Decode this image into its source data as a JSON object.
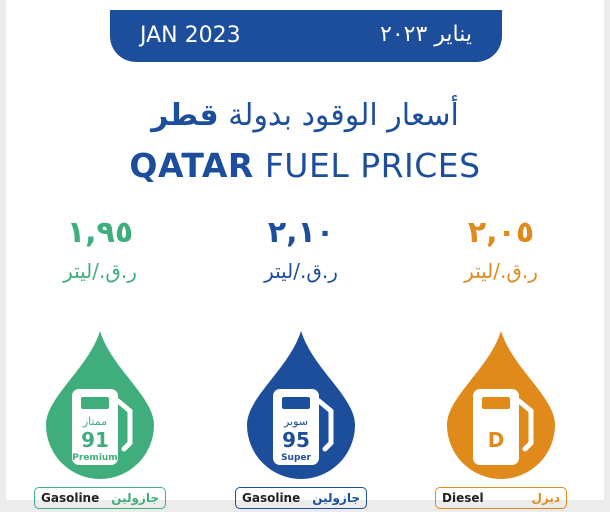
{
  "header": {
    "date_en": "JAN 2023",
    "date_ar": "يناير ٢٠٢٣"
  },
  "title": {
    "ar_regular": "أسعار الوقود بدولة",
    "ar_bold": "قطر",
    "en_bold": "QATAR",
    "en_regular": "FUEL PRICES"
  },
  "fuels": [
    {
      "price": "١,٩٥",
      "unit": "ر.ق./ليتر",
      "pump_ar": "ممتاز",
      "pump_number": "91",
      "pump_en": "Premium",
      "label_en": "Gasoline",
      "label_ar": "جازولين",
      "color": "#3fae7c"
    },
    {
      "price": "٢,١٠",
      "unit": "ر.ق./ليتر",
      "pump_ar": "سوبر",
      "pump_number": "95",
      "pump_en": "Super",
      "label_en": "Gasoline",
      "label_ar": "جازولين",
      "color": "#1d4e9b"
    },
    {
      "price": "٢,٠٥",
      "unit": "ر.ق./ليتر",
      "pump_letter": "D",
      "label_en": "Diesel",
      "label_ar": "ديزل",
      "color": "#e08a1c"
    }
  ]
}
